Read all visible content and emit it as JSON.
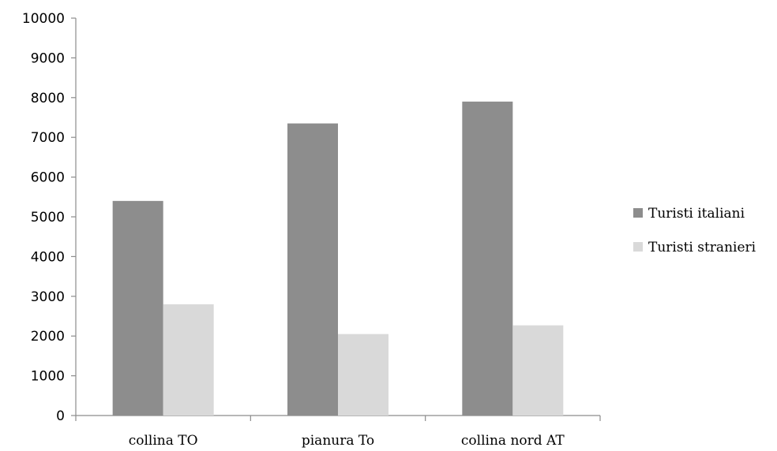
{
  "chart_data": {
    "type": "bar",
    "title": "",
    "xlabel": "",
    "ylabel": "",
    "categories": [
      "collina TO",
      "pianura To",
      "collina nord AT"
    ],
    "series": [
      {
        "name": "Turisti italiani",
        "values": [
          5400,
          7350,
          7900
        ],
        "color": "#8d8d8d"
      },
      {
        "name": "Turisti stranieri",
        "values": [
          2800,
          2050,
          2270
        ],
        "color": "#d9d9d9"
      }
    ],
    "ylim": [
      0,
      10000
    ],
    "yticks": [
      0,
      1000,
      2000,
      3000,
      4000,
      5000,
      6000,
      7000,
      8000,
      9000,
      10000
    ],
    "grid": false,
    "legend_position": "right"
  }
}
